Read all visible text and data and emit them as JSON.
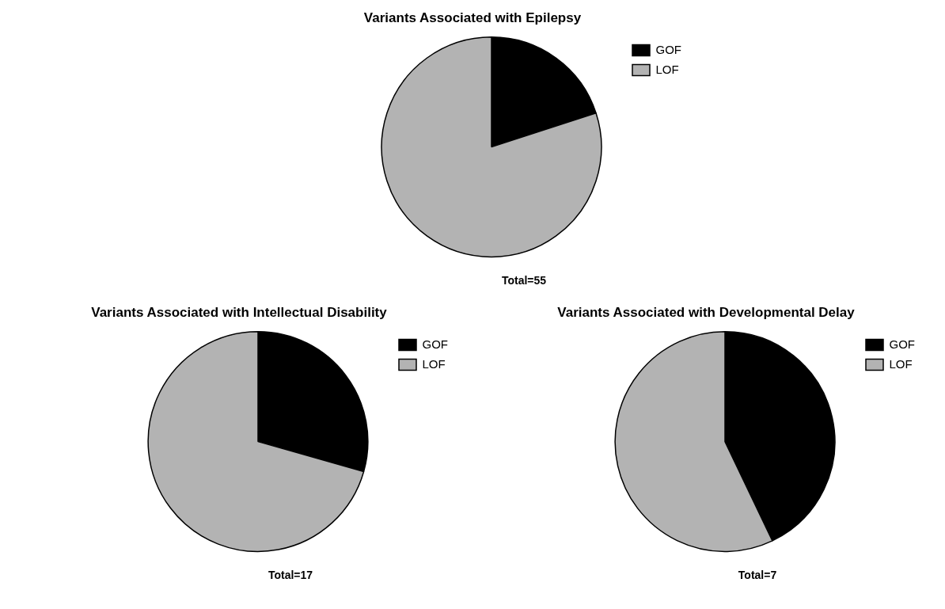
{
  "chart_data": [
    {
      "type": "pie",
      "title": "Variants Associated with Epilepsy",
      "categories": [
        "GOF",
        "LOF"
      ],
      "values": [
        20,
        80
      ],
      "colors": [
        "#000000",
        "#b3b3b3"
      ],
      "legend": "top right",
      "annotations": [
        "Total=55"
      ]
    },
    {
      "type": "pie",
      "title": "Variants Associated with Intellectual Disability",
      "categories": [
        "GOF",
        "LOF"
      ],
      "values": [
        29.4,
        70.6
      ],
      "colors": [
        "#000000",
        "#b3b3b3"
      ],
      "legend": "top right",
      "annotations": [
        "Total=17"
      ]
    },
    {
      "type": "pie",
      "title": "Variants Associated with Developmental Delay",
      "categories": [
        "GOF",
        "LOF"
      ],
      "values": [
        42.9,
        57.1
      ],
      "colors": [
        "#000000",
        "#b3b3b3"
      ],
      "legend": "top right",
      "annotations": [
        "Total=7"
      ]
    }
  ]
}
